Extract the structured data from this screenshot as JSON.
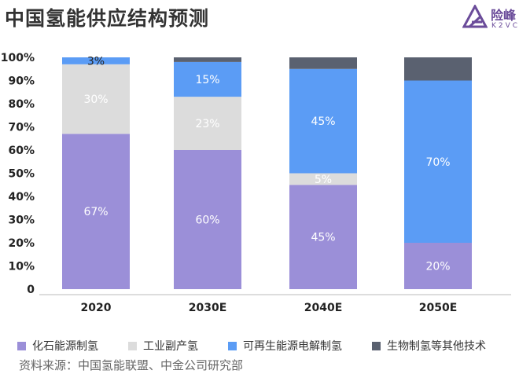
{
  "title": "中国氢能供应结构预测",
  "logo": {
    "cn": "险峰",
    "en": "K2VC",
    "color": "#6b4c9a"
  },
  "source": "资料来源：中国氢能联盟、中金公司研究部",
  "chart_data": {
    "type": "stacked-bar",
    "title": "中国氢能供应结构预测",
    "categories": [
      "2020",
      "2030E",
      "2040E",
      "2050E"
    ],
    "ylim": [
      0,
      100
    ],
    "yticks": [
      "0",
      "10%",
      "20%",
      "30%",
      "40%",
      "50%",
      "60%",
      "70%",
      "80%",
      "90%",
      "100%"
    ],
    "legend_position": "bottom",
    "grid": false,
    "series": [
      {
        "name": "化石能源制氢",
        "color": "#9b8fd8",
        "values": [
          67,
          60,
          45,
          20
        ],
        "labels": [
          "67%",
          "60%",
          "45%",
          "20%"
        ]
      },
      {
        "name": "工业副产氢",
        "color": "#dcdcdc",
        "values": [
          30,
          23,
          5,
          0
        ],
        "labels": [
          "30%",
          "23%",
          "5%",
          ""
        ]
      },
      {
        "name": "可再生能源电解制氢",
        "color": "#5b9cf5",
        "values": [
          3,
          15,
          45,
          70
        ],
        "labels": [
          "3%",
          "15%",
          "45%",
          "70%"
        ]
      },
      {
        "name": "生物制氢等其他技术",
        "color": "#5a6170",
        "values": [
          0,
          2,
          5,
          10
        ],
        "labels": [
          "",
          "",
          "",
          ""
        ]
      }
    ]
  }
}
